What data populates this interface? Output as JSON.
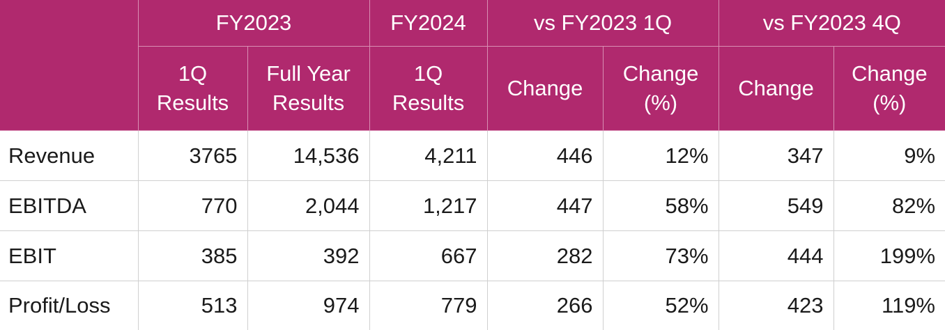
{
  "header": {
    "groups": [
      "FY2023",
      "FY2024",
      "vs FY2023 1Q",
      "vs FY2023 4Q"
    ],
    "subcolumns": [
      [
        "1Q",
        "Results"
      ],
      [
        "Full Year",
        "Results"
      ],
      [
        "1Q",
        "Results"
      ],
      [
        "Change"
      ],
      [
        "Change",
        "(%)"
      ],
      [
        "Change"
      ],
      [
        "Change",
        "(%)"
      ]
    ]
  },
  "rows": [
    {
      "label": "Revenue",
      "values": [
        "3765",
        "14,536",
        "4,211",
        "446",
        "12%",
        "347",
        "9%"
      ]
    },
    {
      "label": "EBITDA",
      "values": [
        "770",
        "2,044",
        "1,217",
        "447",
        "58%",
        "549",
        "82%"
      ]
    },
    {
      "label": "EBIT",
      "values": [
        "385",
        "392",
        "667",
        "282",
        "73%",
        "444",
        "199%"
      ]
    },
    {
      "label": "Profit/Loss",
      "values": [
        "513",
        "974",
        "779",
        "266",
        "52%",
        "423",
        "119%"
      ]
    }
  ],
  "colors": {
    "header_bg": "#b0296e",
    "header_text": "#ffffff",
    "header_border": "#d98fb4",
    "cell_border": "#cfcfcf"
  }
}
